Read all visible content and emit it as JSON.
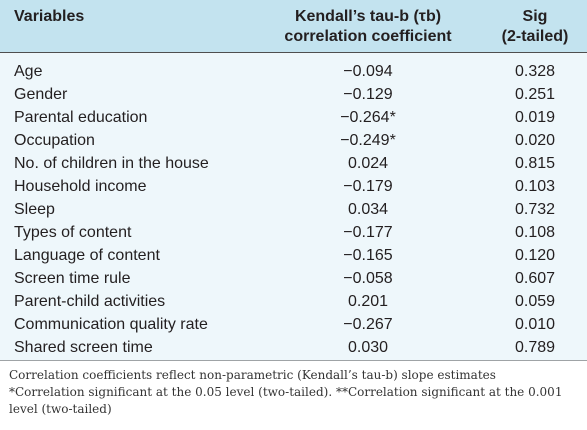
{
  "table": {
    "headers": {
      "variables": "Variables",
      "tau_line1": "Kendall’s tau-b (τb)",
      "tau_line2": "correlation coefficient",
      "sig_line1": "Sig",
      "sig_line2": "(2-tailed)"
    },
    "rows": [
      {
        "variable": "Age",
        "tau": "−0.094",
        "sig": "0.328"
      },
      {
        "variable": "Gender",
        "tau": "−0.129",
        "sig": "0.251"
      },
      {
        "variable": "Parental education",
        "tau": "−0.264*",
        "sig": "0.019"
      },
      {
        "variable": "Occupation",
        "tau": "−0.249*",
        "sig": "0.020"
      },
      {
        "variable": "No. of children in the house",
        "tau": "0.024",
        "sig": "0.815"
      },
      {
        "variable": "Household income",
        "tau": "−0.179",
        "sig": "0.103"
      },
      {
        "variable": "Sleep",
        "tau": "0.034",
        "sig": "0.732"
      },
      {
        "variable": "Types of content",
        "tau": "−0.177",
        "sig": "0.108"
      },
      {
        "variable": "Language of content",
        "tau": "−0.165",
        "sig": "0.120"
      },
      {
        "variable": "Screen time rule",
        "tau": "−0.058",
        "sig": "0.607"
      },
      {
        "variable": "Parent-child activities",
        "tau": "0.201",
        "sig": "0.059"
      },
      {
        "variable": "Communication quality rate",
        "tau": "−0.267",
        "sig": "0.010"
      },
      {
        "variable": "Shared screen time",
        "tau": "0.030",
        "sig": "0.789"
      }
    ]
  },
  "footnotes": {
    "note1": "Correlation coefficients reflect non-parametric (Kendall’s tau-b) slope estimates",
    "note2": "*Correlation significant at the 0.05 level (two-tailed). **Correlation significant at the 0.001 level (two-tailed)"
  },
  "colors": {
    "header_bg": "#c3e3ef",
    "body_bg": "#eef7fb",
    "rule": "#4f4f4f"
  }
}
